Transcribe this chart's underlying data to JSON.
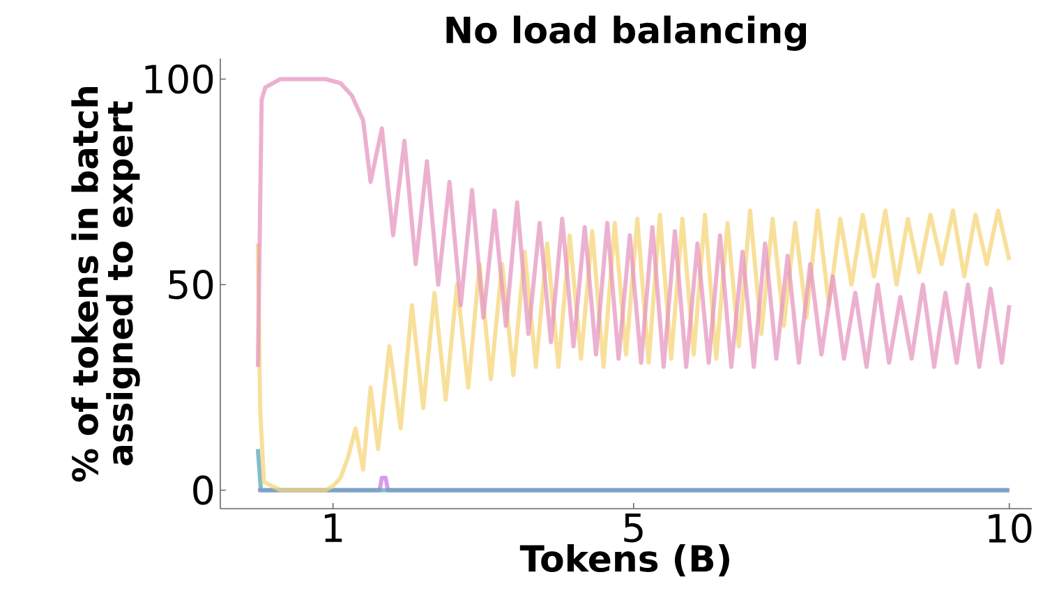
{
  "chart_data": {
    "type": "line",
    "title": "No load balancing",
    "xlabel": "Tokens (B)",
    "ylabel": "% of tokens in batch assigned to expert",
    "xlim": [
      -0.5,
      10.3
    ],
    "ylim": [
      -4.5,
      105
    ],
    "xticks": [
      1,
      5,
      10
    ],
    "yticks": [
      0,
      50,
      100
    ],
    "grid": false,
    "line_style": "solid",
    "series": [
      {
        "color": "#c77be8",
        "x": [
          0,
          1.62,
          1.65,
          1.7,
          1.73,
          10
        ],
        "values": [
          0,
          0,
          3,
          3,
          0,
          0
        ]
      },
      {
        "color": "#5aa7b8",
        "x": [
          0,
          0.04,
          10
        ],
        "values": [
          10,
          0,
          0
        ]
      },
      {
        "color": "#f5d57a",
        "x": [
          0,
          0.03,
          0.08,
          0.3,
          0.6,
          0.9,
          1.0,
          1.1,
          1.2,
          1.3,
          1.4,
          1.5,
          1.6,
          1.75,
          1.9,
          2.05,
          2.2,
          2.35,
          2.5,
          2.65,
          2.8,
          2.95,
          3.1,
          3.25,
          3.4,
          3.55,
          3.7,
          3.85,
          4.0,
          4.15,
          4.3,
          4.45,
          4.6,
          4.75,
          4.9,
          5.05,
          5.2,
          5.35,
          5.5,
          5.65,
          5.8,
          5.95,
          6.1,
          6.25,
          6.4,
          6.55,
          6.7,
          6.85,
          7.0,
          7.15,
          7.3,
          7.45,
          7.6,
          7.75,
          7.9,
          8.05,
          8.2,
          8.35,
          8.5,
          8.65,
          8.8,
          8.95,
          9.1,
          9.25,
          9.4,
          9.55,
          9.7,
          9.85,
          10.0
        ],
        "values": [
          60,
          20,
          2,
          0,
          0,
          0,
          1,
          3,
          8,
          15,
          5,
          25,
          10,
          35,
          15,
          45,
          20,
          48,
          22,
          50,
          25,
          55,
          27,
          55,
          28,
          58,
          30,
          60,
          30,
          62,
          32,
          63,
          30,
          65,
          33,
          66,
          31,
          67,
          32,
          66,
          33,
          67,
          32,
          65,
          35,
          68,
          38,
          66,
          40,
          65,
          42,
          68,
          45,
          66,
          50,
          67,
          52,
          68,
          50,
          66,
          53,
          67,
          55,
          68,
          52,
          67,
          55,
          68,
          56
        ]
      },
      {
        "color": "#e597c0",
        "x": [
          0,
          0.05,
          0.1,
          0.3,
          0.6,
          0.9,
          1.1,
          1.25,
          1.4,
          1.5,
          1.65,
          1.8,
          1.95,
          2.1,
          2.25,
          2.4,
          2.55,
          2.7,
          2.85,
          3.0,
          3.15,
          3.3,
          3.45,
          3.6,
          3.75,
          3.9,
          4.05,
          4.2,
          4.35,
          4.5,
          4.65,
          4.8,
          4.95,
          5.1,
          5.25,
          5.4,
          5.55,
          5.7,
          5.85,
          6.0,
          6.15,
          6.3,
          6.45,
          6.6,
          6.75,
          6.9,
          7.05,
          7.2,
          7.35,
          7.5,
          7.65,
          7.8,
          7.95,
          8.1,
          8.25,
          8.4,
          8.55,
          8.7,
          8.85,
          9.0,
          9.15,
          9.3,
          9.45,
          9.6,
          9.75,
          9.9,
          10.0
        ],
        "values": [
          30,
          95,
          98,
          100,
          100,
          100,
          99,
          96,
          90,
          75,
          88,
          62,
          85,
          55,
          80,
          50,
          75,
          45,
          73,
          42,
          68,
          40,
          70,
          38,
          65,
          36,
          66,
          35,
          64,
          33,
          65,
          32,
          62,
          31,
          64,
          30,
          63,
          30,
          60,
          31,
          62,
          30,
          58,
          30,
          60,
          32,
          57,
          31,
          55,
          33,
          52,
          32,
          48,
          30,
          50,
          31,
          47,
          32,
          50,
          30,
          48,
          31,
          50,
          30,
          49,
          31,
          45
        ]
      }
    ]
  }
}
